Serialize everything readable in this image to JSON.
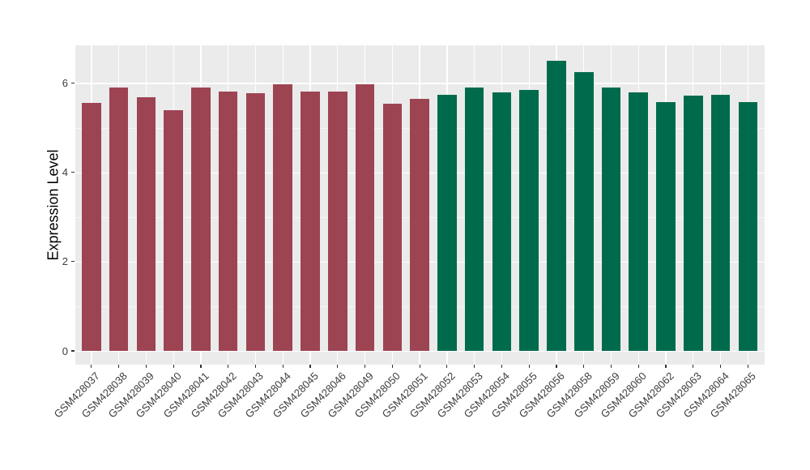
{
  "chart_data": {
    "type": "bar",
    "title": "",
    "xlabel": "",
    "ylabel": "Expression Level",
    "grid": "on",
    "legend_position": "none",
    "panel_background": "#EBEBEB",
    "gridline_color": "#FFFFFF",
    "axis_text_color": "#3C3C3C",
    "axis_title_color": "#000000",
    "tick_mark_color": "#333333",
    "ylim": [
      -0.33,
      6.84
    ],
    "y_ticks": [
      0,
      2,
      4,
      6
    ],
    "y_minor_ticks": [
      1,
      3,
      5
    ],
    "bar_width_fraction": 0.7,
    "categories": [
      "GSM428037",
      "GSM428038",
      "GSM428039",
      "GSM428040",
      "GSM428041",
      "GSM428042",
      "GSM428043",
      "GSM428044",
      "GSM428045",
      "GSM428046",
      "GSM428049",
      "GSM428050",
      "GSM428051",
      "GSM428052",
      "GSM428053",
      "GSM428054",
      "GSM428055",
      "GSM428056",
      "GSM428058",
      "GSM428059",
      "GSM428060",
      "GSM428062",
      "GSM428063",
      "GSM428064",
      "GSM428065"
    ],
    "values": [
      5.56,
      5.89,
      5.68,
      5.39,
      5.9,
      5.8,
      5.78,
      5.98,
      5.81,
      5.81,
      5.98,
      5.54,
      5.64,
      5.73,
      5.89,
      5.79,
      5.85,
      6.5,
      6.24,
      5.89,
      5.79,
      5.57,
      5.72,
      5.74,
      5.57
    ],
    "group_of_bar": [
      "group1",
      "group1",
      "group1",
      "group1",
      "group1",
      "group1",
      "group1",
      "group1",
      "group1",
      "group1",
      "group1",
      "group1",
      "group1",
      "group2",
      "group2",
      "group2",
      "group2",
      "group2",
      "group2",
      "group2",
      "group2",
      "group2",
      "group2",
      "group2",
      "group2"
    ],
    "groups": {
      "group1": {
        "color": "#9D4452"
      },
      "group2": {
        "color": "#006B4C"
      }
    }
  }
}
